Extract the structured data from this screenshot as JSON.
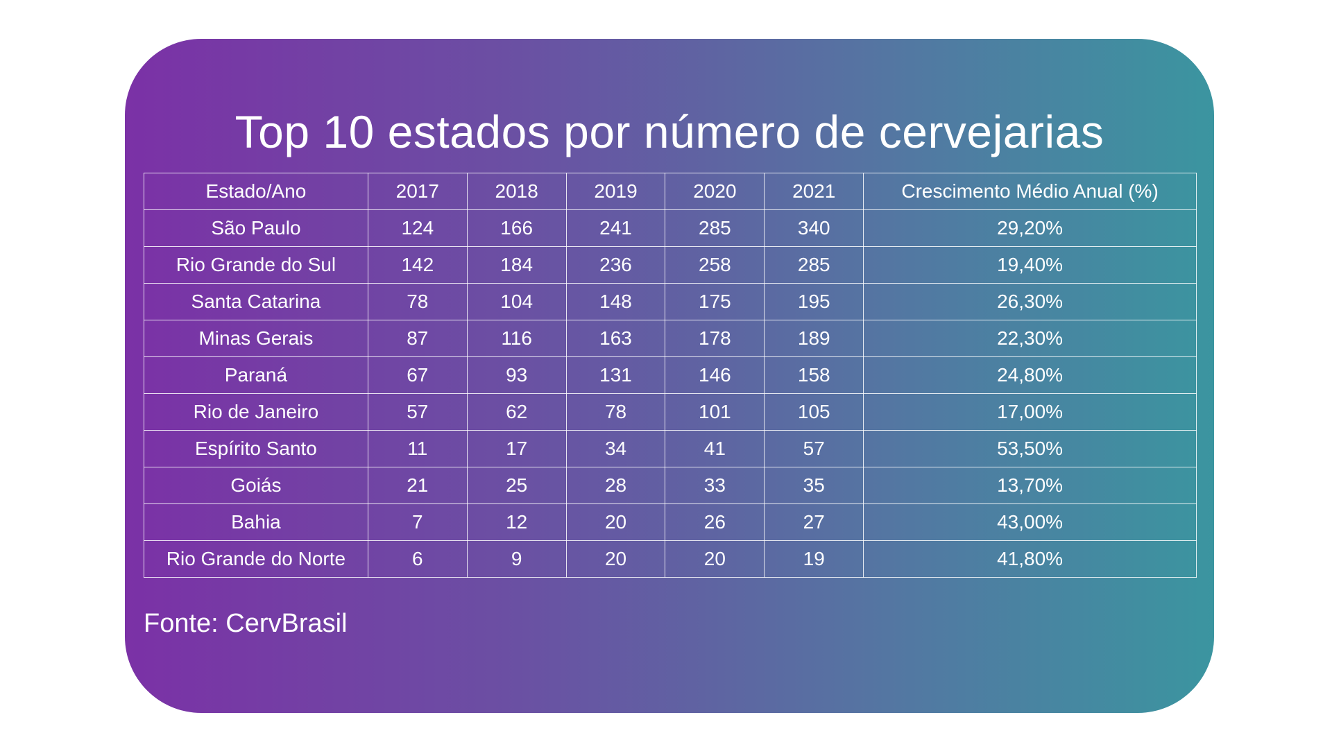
{
  "title": "Top 10 estados por número de cervejarias",
  "source": "Fonte: CervBrasil",
  "colors": {
    "gradient_start": "#7b31a6",
    "gradient_end": "#3b95a0",
    "text": "#ffffff"
  },
  "chart_data": {
    "type": "table",
    "title": "Top 10 estados por número de cervejarias",
    "columns": [
      "Estado/Ano",
      "2017",
      "2018",
      "2019",
      "2020",
      "2021",
      "Crescimento Médio Anual (%)"
    ],
    "rows": [
      [
        "São Paulo",
        "124",
        "166",
        "241",
        "285",
        "340",
        "29,20%"
      ],
      [
        "Rio Grande do Sul",
        "142",
        "184",
        "236",
        "258",
        "285",
        "19,40%"
      ],
      [
        "Santa Catarina",
        "78",
        "104",
        "148",
        "175",
        "195",
        "26,30%"
      ],
      [
        "Minas Gerais",
        "87",
        "116",
        "163",
        "178",
        "189",
        "22,30%"
      ],
      [
        "Paraná",
        "67",
        "93",
        "131",
        "146",
        "158",
        "24,80%"
      ],
      [
        "Rio de Janeiro",
        "57",
        "62",
        "78",
        "101",
        "105",
        "17,00%"
      ],
      [
        "Espírito Santo",
        "11",
        "17",
        "34",
        "41",
        "57",
        "53,50%"
      ],
      [
        "Goiás",
        "21",
        "25",
        "28",
        "33",
        "35",
        "13,70%"
      ],
      [
        "Bahia",
        "7",
        "12",
        "20",
        "26",
        "27",
        "43,00%"
      ],
      [
        "Rio Grande do Norte",
        "6",
        "9",
        "20",
        "20",
        "19",
        "41,80%"
      ]
    ]
  }
}
